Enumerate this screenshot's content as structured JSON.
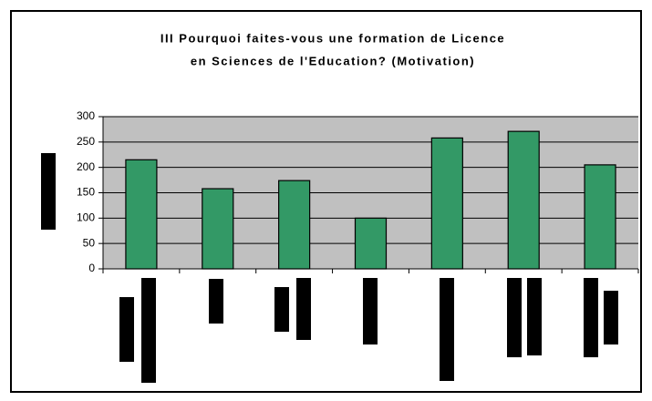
{
  "chart_data": {
    "type": "bar",
    "title": [
      "III Pourquoi faites-vous une formation de Licence",
      "en Sciences de l'Education? (Motivation)"
    ],
    "categories": [
      null,
      null,
      null,
      null,
      null,
      null,
      null
    ],
    "values": [
      215,
      158,
      174,
      100,
      258,
      271,
      205
    ],
    "color": "#339966",
    "ylim": [
      0,
      300
    ],
    "yticks": [
      0,
      50,
      100,
      150,
      200,
      250,
      300
    ],
    "grid": true
  }
}
